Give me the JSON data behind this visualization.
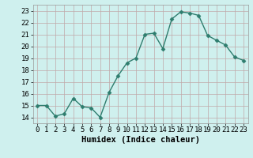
{
  "x": [
    0,
    1,
    2,
    3,
    4,
    5,
    6,
    7,
    8,
    9,
    10,
    11,
    12,
    13,
    14,
    15,
    16,
    17,
    18,
    19,
    20,
    21,
    22,
    23
  ],
  "y": [
    15.0,
    15.0,
    14.1,
    14.3,
    15.6,
    14.9,
    14.8,
    14.0,
    16.1,
    17.5,
    18.6,
    19.0,
    21.0,
    21.1,
    19.8,
    22.3,
    22.9,
    22.8,
    22.6,
    20.9,
    20.5,
    20.1,
    19.1,
    18.8
  ],
  "line_color": "#2e7d6e",
  "marker_color": "#2e7d6e",
  "bg_color": "#cff0ee",
  "grid_color_major": "#c0a8a8",
  "grid_color_minor": "#ddd0d0",
  "xlabel": "Humidex (Indice chaleur)",
  "ylim": [
    13.5,
    23.5
  ],
  "xlim": [
    -0.5,
    23.5
  ],
  "yticks": [
    14,
    15,
    16,
    17,
    18,
    19,
    20,
    21,
    22,
    23
  ],
  "xticks": [
    0,
    1,
    2,
    3,
    4,
    5,
    6,
    7,
    8,
    9,
    10,
    11,
    12,
    13,
    14,
    15,
    16,
    17,
    18,
    19,
    20,
    21,
    22,
    23
  ],
  "xlabel_fontsize": 7.5,
  "tick_fontsize": 6.5,
  "line_width": 1.0,
  "marker_size": 2.5,
  "marker": "D"
}
